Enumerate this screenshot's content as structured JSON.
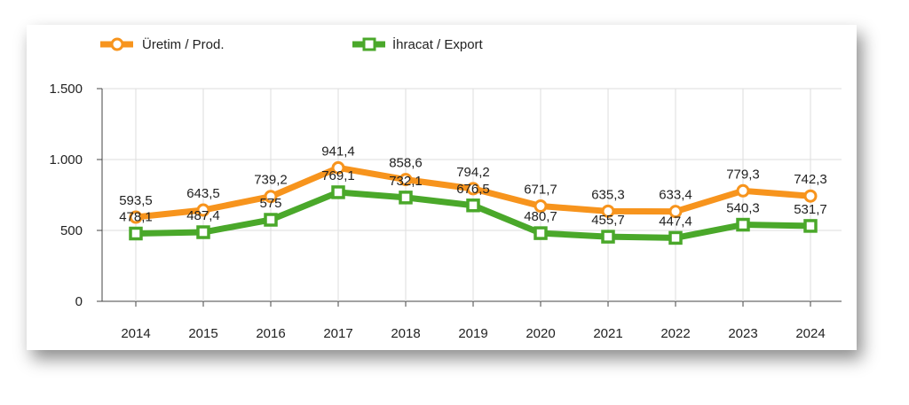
{
  "chart_data": {
    "type": "line",
    "title": "",
    "xlabel": "",
    "ylabel": "",
    "categories": [
      "2014",
      "2015",
      "2016",
      "2017",
      "2018",
      "2019",
      "2020",
      "2021",
      "2022",
      "2023",
      "2024"
    ],
    "ylim": [
      0,
      1500
    ],
    "yticks": [
      0,
      500,
      1000,
      1500
    ],
    "ytick_labels": [
      "0",
      "500",
      "1.000",
      "1.500"
    ],
    "grid": true,
    "legend_position": "top-left",
    "series": [
      {
        "name": "Üretim / Prod.",
        "color": "#f7941d",
        "marker": "circle",
        "values": [
          593.5,
          643.5,
          739.2,
          941.4,
          858.6,
          794.2,
          671.7,
          635.3,
          633.4,
          779.3,
          742.3
        ],
        "labels": [
          "593,5",
          "643,5",
          "739,2",
          "941,4",
          "858,6",
          "794,2",
          "671,7",
          "635,3",
          "633,4",
          "779,3",
          "742,3"
        ]
      },
      {
        "name": "İhracat / Export",
        "color": "#4aa82a",
        "marker": "square",
        "values": [
          478.1,
          487.4,
          575,
          769.1,
          732.1,
          676.5,
          480.7,
          455.7,
          447.4,
          540.3,
          531.7
        ],
        "labels": [
          "478,1",
          "487,4",
          "575",
          "769,1",
          "732,1",
          "676,5",
          "480,7",
          "455,7",
          "447,4",
          "540,3",
          "531,7"
        ]
      }
    ]
  }
}
